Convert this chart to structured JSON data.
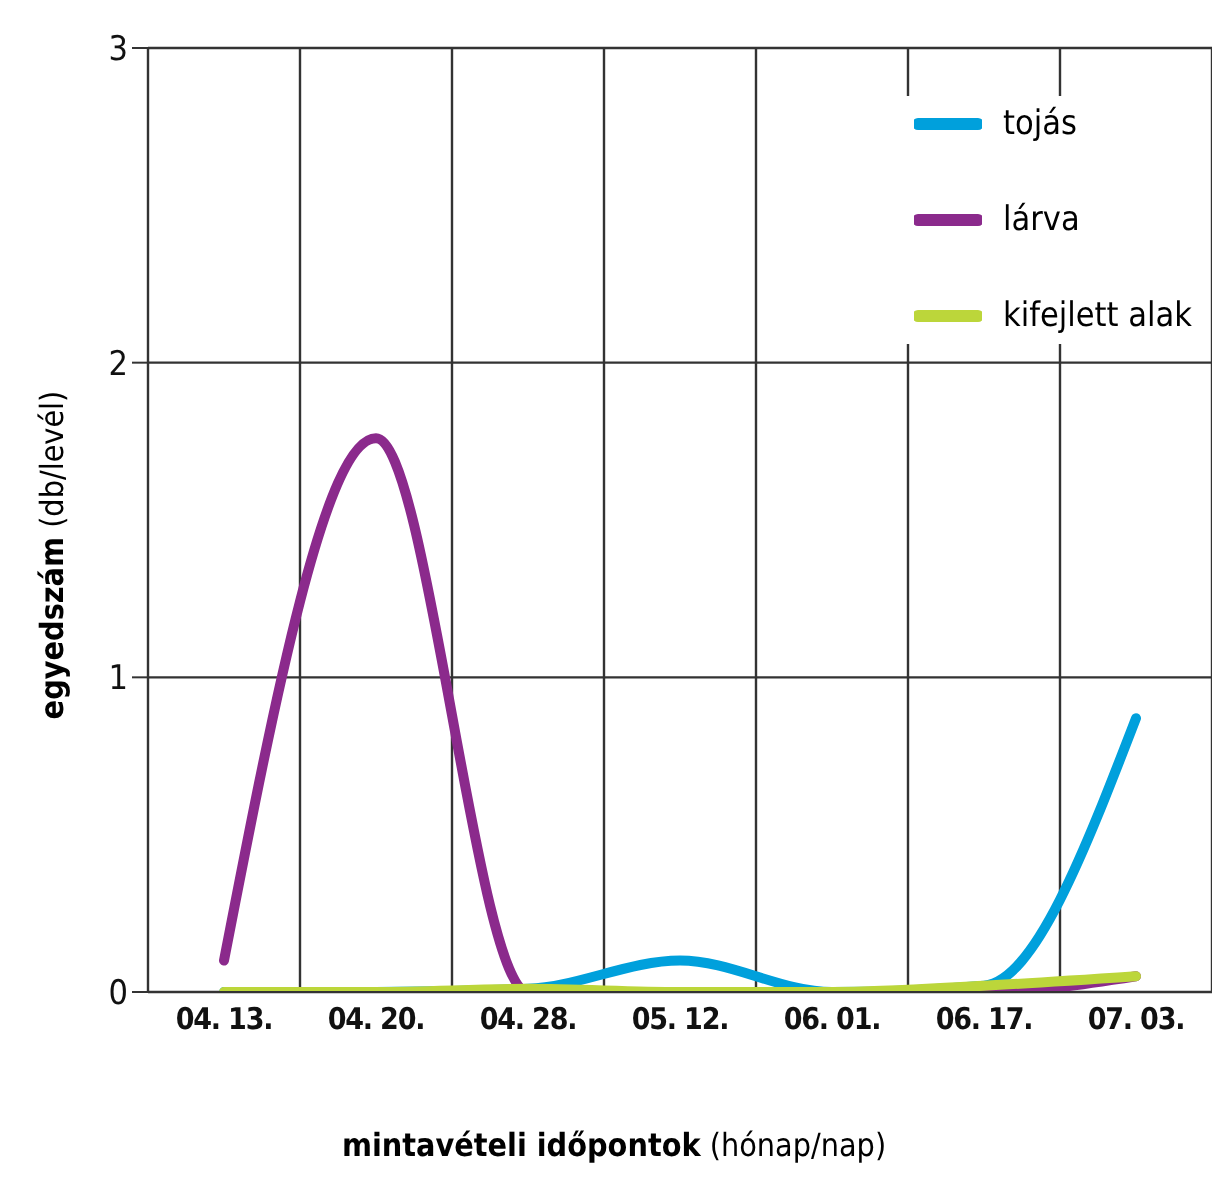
{
  "chart_data": {
    "type": "line",
    "xlabel": "mintavételi időpontok (hónap/nap)",
    "ylabel": "egyedszám (db/levél)",
    "categories": [
      "04. 13.",
      "04. 20.",
      "04. 28.",
      "05. 12.",
      "06. 01.",
      "06. 17.",
      "07. 03."
    ],
    "series": [
      {
        "name": "tojás",
        "color": "#00a0dc",
        "values": [
          0,
          0,
          0.01,
          0.1,
          0,
          0.02,
          0.87
        ]
      },
      {
        "name": "lárva",
        "color": "#8b2a8c",
        "values": [
          0.1,
          1.76,
          0,
          0,
          0,
          0,
          0.05
        ]
      },
      {
        "name": "kifejlett alak",
        "color": "#bcd63a",
        "values": [
          0,
          0,
          0.01,
          0,
          0,
          0.02,
          0.05
        ]
      }
    ],
    "ylim": [
      0,
      3
    ],
    "yticks": [
      0,
      1,
      2,
      3
    ],
    "grid": true,
    "legend": "top right",
    "marker": "none",
    "line_style": "solid"
  }
}
